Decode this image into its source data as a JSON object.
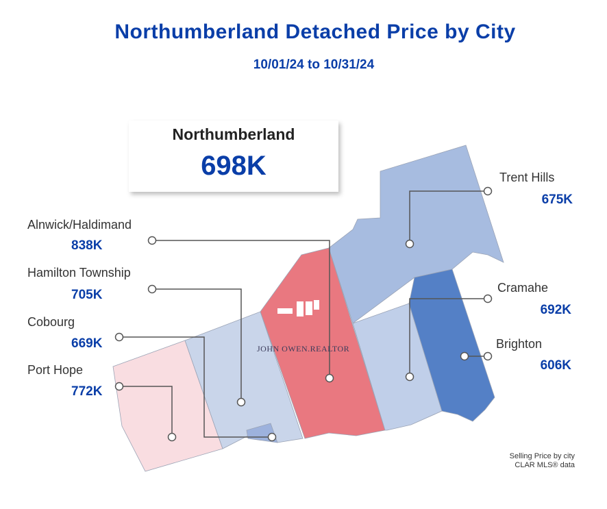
{
  "title": "Northumberland Detached Price by City",
  "subtitle": "10/01/24 to 10/31/24",
  "summary": {
    "name": "Northumberland",
    "value": "698K"
  },
  "cities": [
    {
      "name": "Alnwick/Haldimand",
      "value": "838K",
      "color": "#e97880"
    },
    {
      "name": "Hamilton Township",
      "value": "705K",
      "color": "#c9d5ea"
    },
    {
      "name": "Cobourg",
      "value": "669K",
      "color": "#9db2dd"
    },
    {
      "name": "Port Hope",
      "value": "772K",
      "color": "#f9dde1"
    },
    {
      "name": "Trent Hills",
      "value": "675K",
      "color": "#a7bce0"
    },
    {
      "name": "Cramahe",
      "value": "692K",
      "color": "#c0cfe9"
    },
    {
      "name": "Brighton",
      "value": "606K",
      "color": "#5480c6"
    }
  ],
  "watermark": "JOHN OWEN.REALTOR",
  "source": {
    "line1": "Selling Price by city",
    "line2": "CLAR MLS® data"
  }
}
